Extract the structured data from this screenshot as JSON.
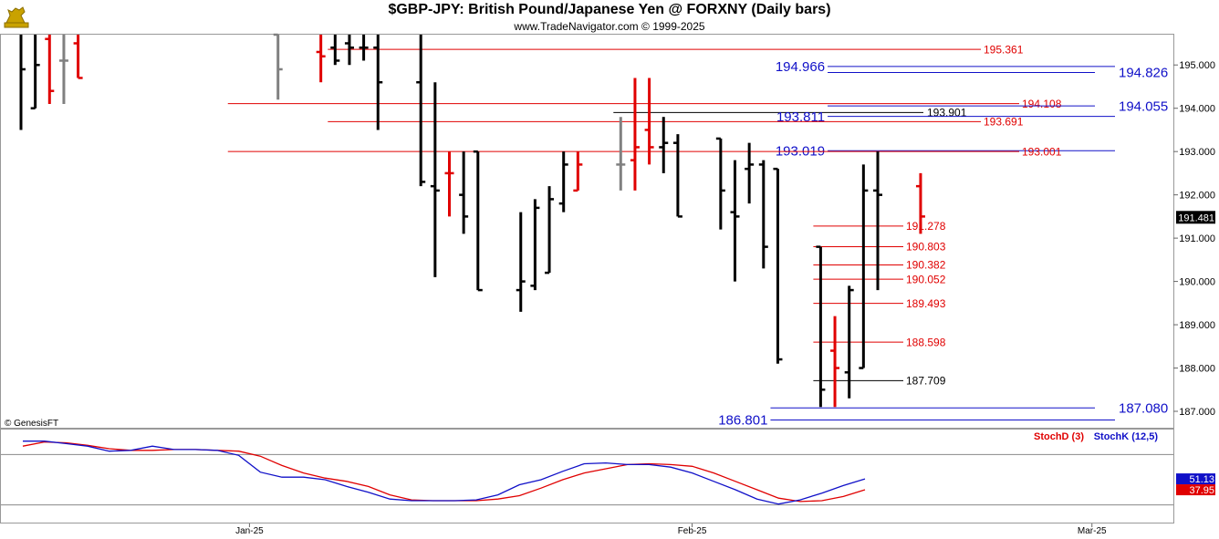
{
  "header": {
    "title": "$GBP-JPY:  British Pound/Japanese Yen @ FORXNY  (Daily bars)",
    "subtitle": "www.TradeNavigator.com © 1999-2025",
    "logo_icon": "genesis-bull-logo-icon"
  },
  "watermark": "© GenesisFT",
  "last_price": "191.481",
  "colors": {
    "up_bar": "#000000",
    "down_bar": "#e00000",
    "neutral_bar": "#808080",
    "red_line": "#e00000",
    "blue_line": "#1010c8",
    "black_line": "#000000",
    "stochD": "#e00000",
    "stochK": "#1010c8"
  },
  "chart_data": [
    {
      "type": "ohlc",
      "title": "$GBP-JPY:  British Pound/Japanese Yen @ FORXNY  (Daily bars)",
      "ylim": [
        186.6,
        195.7
      ],
      "y_ticks": [
        "195.000",
        "194.000",
        "193.000",
        "192.000",
        "191.000",
        "190.000",
        "189.000",
        "188.000",
        "187.000"
      ],
      "x_tick_labels": [
        "Jan-25",
        "Feb-25",
        "Mar-25"
      ],
      "grid": false,
      "bars": [
        {
          "date": "2024-12-16",
          "o": 196.0,
          "h": 196.5,
          "l": 193.5,
          "c": 194.9,
          "color": "black"
        },
        {
          "date": "2024-12-17",
          "o": 194.0,
          "h": 196.5,
          "l": 194.0,
          "c": 195.0,
          "color": "black"
        },
        {
          "date": "2024-12-18",
          "o": 195.6,
          "h": 195.7,
          "l": 194.1,
          "c": 194.4,
          "color": "red"
        },
        {
          "date": "2024-12-19",
          "o": 195.1,
          "h": 196.2,
          "l": 194.1,
          "c": 195.1,
          "color": "gray"
        },
        {
          "date": "2024-12-20",
          "o": 195.5,
          "h": 195.7,
          "l": 194.7,
          "c": 194.7,
          "color": "red"
        },
        {
          "date": "2025-01-03",
          "o": 195.7,
          "h": 195.7,
          "l": 194.2,
          "c": 194.9,
          "color": "gray"
        },
        {
          "date": "2025-01-06",
          "o": 195.3,
          "h": 195.7,
          "l": 194.6,
          "c": 195.2,
          "color": "red"
        },
        {
          "date": "2025-01-07",
          "o": 195.4,
          "h": 195.7,
          "l": 195.0,
          "c": 195.1,
          "color": "black"
        },
        {
          "date": "2025-01-08",
          "o": 195.5,
          "h": 195.7,
          "l": 195.0,
          "c": 195.4,
          "color": "black"
        },
        {
          "date": "2025-01-09",
          "o": 195.4,
          "h": 195.7,
          "l": 195.1,
          "c": 195.4,
          "color": "black"
        },
        {
          "date": "2025-01-10",
          "o": 195.4,
          "h": 195.7,
          "l": 193.5,
          "c": 194.6,
          "color": "black"
        },
        {
          "date": "2025-01-13",
          "o": 194.6,
          "h": 195.7,
          "l": 192.2,
          "c": 192.3,
          "color": "black"
        },
        {
          "date": "2025-01-14",
          "o": 192.2,
          "h": 194.6,
          "l": 190.1,
          "c": 192.1,
          "color": "black"
        },
        {
          "date": "2025-01-15",
          "o": 192.5,
          "h": 193.0,
          "l": 191.5,
          "c": 192.5,
          "color": "red"
        },
        {
          "date": "2025-01-16",
          "o": 192.0,
          "h": 193.0,
          "l": 191.1,
          "c": 191.5,
          "color": "black"
        },
        {
          "date": "2025-01-17",
          "o": 193.0,
          "h": 193.0,
          "l": 189.8,
          "c": 189.8,
          "color": "black"
        },
        {
          "date": "2025-01-20",
          "o": 189.8,
          "h": 191.6,
          "l": 189.3,
          "c": 190.0,
          "color": "black"
        },
        {
          "date": "2025-01-21",
          "o": 189.9,
          "h": 191.9,
          "l": 189.8,
          "c": 191.7,
          "color": "black"
        },
        {
          "date": "2025-01-22",
          "o": 190.2,
          "h": 192.2,
          "l": 190.2,
          "c": 191.9,
          "color": "black"
        },
        {
          "date": "2025-01-23",
          "o": 191.8,
          "h": 193.0,
          "l": 191.6,
          "c": 192.7,
          "color": "black"
        },
        {
          "date": "2025-01-24",
          "o": 192.1,
          "h": 193.0,
          "l": 192.1,
          "c": 192.7,
          "color": "red"
        },
        {
          "date": "2025-01-27",
          "o": 192.7,
          "h": 193.8,
          "l": 192.1,
          "c": 192.7,
          "color": "gray"
        },
        {
          "date": "2025-01-28",
          "o": 192.8,
          "h": 194.7,
          "l": 192.1,
          "c": 193.1,
          "color": "red"
        },
        {
          "date": "2025-01-29",
          "o": 193.5,
          "h": 194.7,
          "l": 192.7,
          "c": 193.1,
          "color": "red"
        },
        {
          "date": "2025-01-30",
          "o": 193.1,
          "h": 193.8,
          "l": 192.5,
          "c": 193.2,
          "color": "black"
        },
        {
          "date": "2025-01-31",
          "o": 193.2,
          "h": 193.4,
          "l": 191.5,
          "c": 191.5,
          "color": "black"
        },
        {
          "date": "2025-02-03",
          "o": 193.3,
          "h": 193.3,
          "l": 191.2,
          "c": 192.1,
          "color": "black"
        },
        {
          "date": "2025-02-04",
          "o": 191.6,
          "h": 192.8,
          "l": 190.0,
          "c": 191.5,
          "color": "black"
        },
        {
          "date": "2025-02-05",
          "o": 192.6,
          "h": 193.2,
          "l": 191.8,
          "c": 192.7,
          "color": "black"
        },
        {
          "date": "2025-02-06",
          "o": 192.7,
          "h": 192.8,
          "l": 190.3,
          "c": 190.8,
          "color": "black"
        },
        {
          "date": "2025-02-07",
          "o": 192.6,
          "h": 192.6,
          "l": 188.1,
          "c": 188.2,
          "color": "black"
        },
        {
          "date": "2025-02-10",
          "o": 190.8,
          "h": 190.8,
          "l": 187.1,
          "c": 187.5,
          "color": "black"
        },
        {
          "date": "2025-02-11",
          "o": 188.4,
          "h": 189.2,
          "l": 187.1,
          "c": 188.0,
          "color": "red"
        },
        {
          "date": "2025-02-12",
          "o": 187.9,
          "h": 189.9,
          "l": 187.3,
          "c": 189.8,
          "color": "black"
        },
        {
          "date": "2025-02-13",
          "o": 188.0,
          "h": 192.7,
          "l": 188.0,
          "c": 192.1,
          "color": "black"
        },
        {
          "date": "2025-02-14",
          "o": 192.1,
          "h": 193.0,
          "l": 189.8,
          "c": 192.0,
          "color": "black"
        },
        {
          "date": "2025-02-17",
          "o": 192.2,
          "h": 192.5,
          "l": 191.1,
          "c": 191.5,
          "color": "red"
        }
      ],
      "levels": [
        {
          "value": 195.361,
          "label": "195.361",
          "color": "red",
          "from": "2025-01-07"
        },
        {
          "value": 194.966,
          "label": "194.966",
          "color": "blue",
          "from": "2025-02-11",
          "label_side": "left"
        },
        {
          "value": 194.826,
          "label": "194.826",
          "color": "blue",
          "from": "2025-02-11",
          "label_side": "right"
        },
        {
          "value": 194.108,
          "label": "194.108",
          "color": "red",
          "from": "2024-12-31"
        },
        {
          "value": 194.055,
          "label": "194.055",
          "color": "blue",
          "from": "2025-02-11",
          "label_side": "right"
        },
        {
          "value": 193.901,
          "label": "193.901",
          "color": "black",
          "from": "2025-01-27"
        },
        {
          "value": 193.811,
          "label": "193.811",
          "color": "blue",
          "from": "2025-02-11",
          "label_side": "left"
        },
        {
          "value": 193.691,
          "label": "193.691",
          "color": "red",
          "from": "2025-01-07"
        },
        {
          "value": 193.019,
          "label": "193.019",
          "color": "blue",
          "from": "2025-02-11",
          "label_side": "left"
        },
        {
          "value": 193.001,
          "label": "193.001",
          "color": "red",
          "from": "2024-12-31"
        },
        {
          "value": 191.278,
          "label": "191.278",
          "color": "red",
          "from": "2025-02-10"
        },
        {
          "value": 190.803,
          "label": "190.803",
          "color": "red",
          "from": "2025-02-10"
        },
        {
          "value": 190.382,
          "label": "190.382",
          "color": "red",
          "from": "2025-02-10"
        },
        {
          "value": 190.052,
          "label": "190.052",
          "color": "red",
          "from": "2025-02-10"
        },
        {
          "value": 189.493,
          "label": "189.493",
          "color": "red",
          "from": "2025-02-10"
        },
        {
          "value": 188.598,
          "label": "188.598",
          "color": "red",
          "from": "2025-02-10"
        },
        {
          "value": 187.709,
          "label": "187.709",
          "color": "black",
          "from": "2025-02-10"
        },
        {
          "value": 187.08,
          "label": "187.080",
          "color": "blue",
          "from": "2025-02-07",
          "label_side": "right"
        },
        {
          "value": 186.801,
          "label": "186.801",
          "color": "blue",
          "from": "2025-02-07",
          "label_side": "left"
        }
      ]
    },
    {
      "type": "line",
      "title": "",
      "ylim": [
        0,
        100
      ],
      "levels": [
        80,
        20
      ],
      "series": [
        {
          "name": "StochD (3)",
          "color": "red",
          "last_label": "37.95",
          "values": [
            90,
            95,
            94,
            91,
            87,
            85,
            85,
            86,
            86,
            85,
            84,
            78,
            67,
            58,
            52,
            48,
            42,
            32,
            26,
            25,
            25,
            25,
            27,
            31,
            40,
            50,
            58,
            63,
            68,
            69,
            68,
            66,
            58,
            48,
            38,
            28,
            24,
            25,
            30,
            38
          ]
        },
        {
          "name": "StochK (12,5)",
          "color": "blue",
          "last_label": "51.13",
          "values": [
            96,
            96,
            93,
            90,
            84,
            85,
            90,
            86,
            86,
            85,
            79,
            59,
            53,
            53,
            50,
            42,
            35,
            27,
            25,
            25,
            25,
            26,
            32,
            44,
            50,
            60,
            69,
            70,
            68,
            68,
            65,
            58,
            48,
            38,
            27,
            21,
            26,
            34,
            43,
            51
          ]
        }
      ]
    }
  ]
}
